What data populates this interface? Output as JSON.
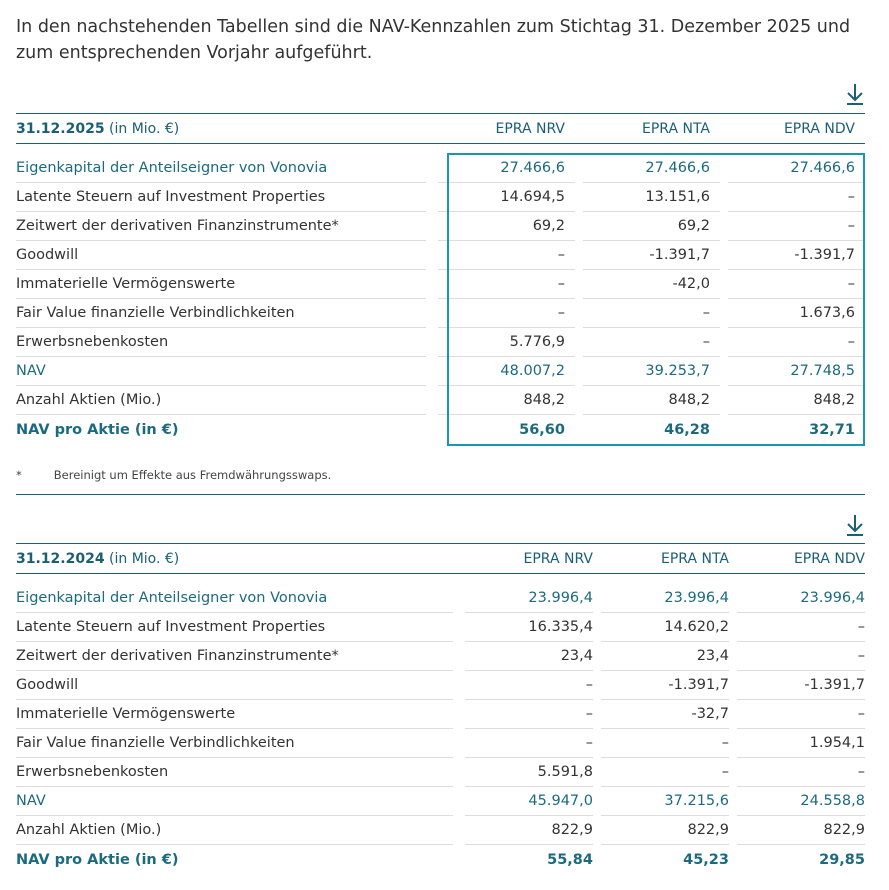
{
  "intro": "In den nachstehenden Tabellen sind die NAV-Kennzahlen zum Stichtag 31. Dezember 2025 und zum entsprechenden Vorjahr aufgeführt.",
  "download_icon": "download-icon",
  "colors": {
    "accent": "#1b5f73",
    "highlight_box": "#1a97a8",
    "highlight_text": "#1b6a80"
  },
  "tables": [
    {
      "date": "31.12.2025",
      "unit": "(in Mio. €)",
      "columns": [
        "EPRA NRV",
        "EPRA NTA",
        "EPRA NDV"
      ],
      "rows": [
        {
          "label": "Eigenkapital der Anteilseigner von Vonovia",
          "values": [
            "27.466,6",
            "27.466,6",
            "27.466,6"
          ],
          "style": "hl"
        },
        {
          "label": "Latente Steuern auf Investment Properties",
          "values": [
            "14.694,5",
            "13.151,6",
            "–"
          ]
        },
        {
          "label": "Zeitwert der derivativen Finanzinstrumente*",
          "values": [
            "69,2",
            "69,2",
            "–"
          ]
        },
        {
          "label": "Goodwill",
          "values": [
            "–",
            "-1.391,7",
            "-1.391,7"
          ]
        },
        {
          "label": "Immaterielle Vermögenswerte",
          "values": [
            "–",
            "-42,0",
            "–"
          ]
        },
        {
          "label": "Fair Value finanzielle Verbindlichkeiten",
          "values": [
            "–",
            "–",
            "1.673,6"
          ]
        },
        {
          "label": "Erwerbsnebenkosten",
          "values": [
            "5.776,9",
            "–",
            "–"
          ]
        },
        {
          "label": "NAV",
          "values": [
            "48.007,2",
            "39.253,7",
            "27.748,5"
          ],
          "style": "hl"
        },
        {
          "label": "Anzahl Aktien (Mio.)",
          "values": [
            "848,2",
            "848,2",
            "848,2"
          ]
        },
        {
          "label": "NAV pro Aktie (in €)",
          "values": [
            "56,60",
            "46,28",
            "32,71"
          ],
          "style": "hl bold"
        }
      ]
    },
    {
      "date": "31.12.2024",
      "unit": "(in Mio. €)",
      "columns": [
        "EPRA NRV",
        "EPRA NTA",
        "EPRA NDV"
      ],
      "rows": [
        {
          "label": "Eigenkapital der Anteilseigner von Vonovia",
          "values": [
            "23.996,4",
            "23.996,4",
            "23.996,4"
          ],
          "style": "hl"
        },
        {
          "label": "Latente Steuern auf Investment Properties",
          "values": [
            "16.335,4",
            "14.620,2",
            "–"
          ]
        },
        {
          "label": "Zeitwert der derivativen Finanzinstrumente*",
          "values": [
            "23,4",
            "23,4",
            "–"
          ]
        },
        {
          "label": "Goodwill",
          "values": [
            "–",
            "-1.391,7",
            "-1.391,7"
          ]
        },
        {
          "label": "Immaterielle Vermögenswerte",
          "values": [
            "–",
            "-32,7",
            "–"
          ]
        },
        {
          "label": "Fair Value finanzielle Verbindlichkeiten",
          "values": [
            "–",
            "–",
            "1.954,1"
          ]
        },
        {
          "label": "Erwerbsnebenkosten",
          "values": [
            "5.591,8",
            "–",
            "–"
          ]
        },
        {
          "label": "NAV",
          "values": [
            "45.947,0",
            "37.215,6",
            "24.558,8"
          ],
          "style": "hl"
        },
        {
          "label": "Anzahl Aktien (Mio.)",
          "values": [
            "822,9",
            "822,9",
            "822,9"
          ]
        },
        {
          "label": "NAV pro Aktie (in €)",
          "values": [
            "55,84",
            "45,23",
            "29,85"
          ],
          "style": "hl bold"
        }
      ]
    }
  ],
  "footnote": {
    "mark": "*",
    "text": "Bereinigt um Effekte aus Fremdwährungsswaps."
  }
}
